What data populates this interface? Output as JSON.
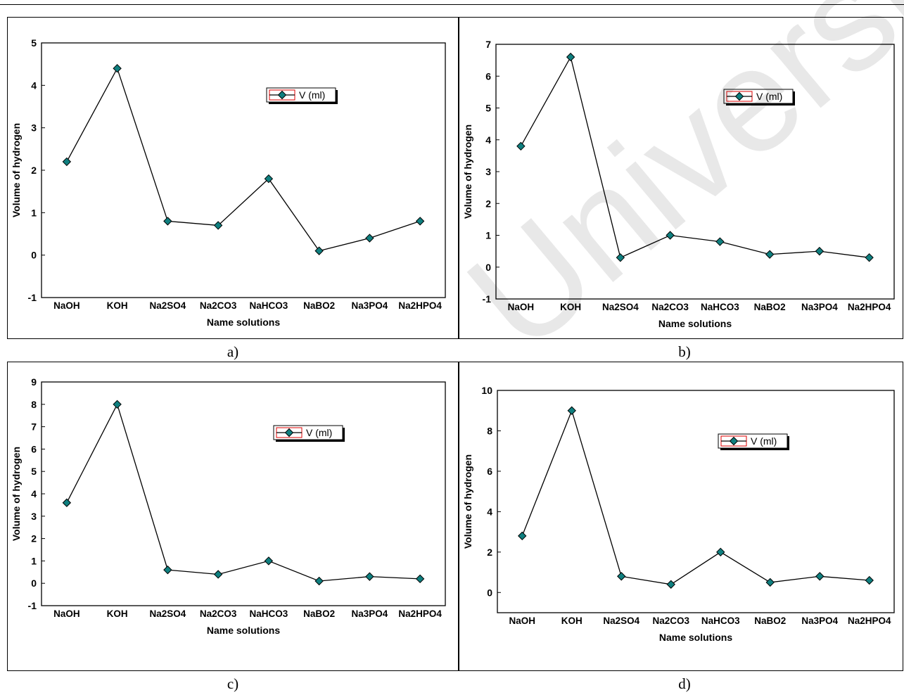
{
  "watermark": "University",
  "chart_data": [
    {
      "type": "line",
      "panel_label": "a)",
      "categories": [
        "NaOH",
        "KOH",
        "Na2SO4",
        "Na2CO3",
        "NaHCO3",
        "NaBO2",
        "Na3PO4",
        "Na2HPO4"
      ],
      "series": [
        {
          "name": "V (ml)",
          "values": [
            2.2,
            4.4,
            0.8,
            0.7,
            1.8,
            0.1,
            0.4,
            0.8
          ]
        }
      ],
      "xlabel": "Name solutions",
      "ylabel": "Volume of hydrogen",
      "ylim": [
        -1,
        5
      ],
      "yticks": [
        -1,
        0,
        1,
        2,
        3,
        4,
        5
      ],
      "grid": false,
      "legend": "top-right",
      "color": "#0f7f7f"
    },
    {
      "type": "line",
      "panel_label": "b)",
      "categories": [
        "NaOH",
        "KOH",
        "Na2SO4",
        "Na2CO3",
        "NaHCO3",
        "NaBO2",
        "Na3PO4",
        "Na2HPO4"
      ],
      "series": [
        {
          "name": "V (ml)",
          "values": [
            3.8,
            6.6,
            0.3,
            1.0,
            0.8,
            0.4,
            0.5,
            0.3
          ]
        }
      ],
      "xlabel": "Name solutions",
      "ylabel": "Volume of hydrogen",
      "ylim": [
        -1,
        7
      ],
      "yticks": [
        -1,
        0,
        1,
        2,
        3,
        4,
        5,
        6,
        7
      ],
      "grid": false,
      "legend": "top-right",
      "color": "#0f7f7f"
    },
    {
      "type": "line",
      "panel_label": "c)",
      "categories": [
        "NaOH",
        "KOH",
        "Na2SO4",
        "Na2CO3",
        "NaHCO3",
        "NaBO2",
        "Na3PO4",
        "Na2HPO4"
      ],
      "series": [
        {
          "name": "V (ml)",
          "values": [
            3.6,
            8.0,
            0.6,
            0.4,
            1.0,
            0.1,
            0.3,
            0.2
          ]
        }
      ],
      "xlabel": "Name solutions",
      "ylabel": "Volume of hydrogen",
      "ylim": [
        -1,
        9
      ],
      "yticks": [
        -1,
        0,
        1,
        2,
        3,
        4,
        5,
        6,
        7,
        8,
        9
      ],
      "grid": false,
      "legend": "top-right",
      "color": "#0f7f7f"
    },
    {
      "type": "line",
      "panel_label": "d)",
      "categories": [
        "NaOH",
        "KOH",
        "Na2SO4",
        "Na2CO3",
        "NaHCO3",
        "NaBO2",
        "Na3PO4",
        "Na2HPO4"
      ],
      "series": [
        {
          "name": "V (ml)",
          "values": [
            2.8,
            9.0,
            0.8,
            0.4,
            2.0,
            0.5,
            0.8,
            0.6
          ]
        }
      ],
      "xlabel": "Name solutions",
      "ylabel": "Volume of hydrogen",
      "ylim": [
        -1,
        10
      ],
      "yticks": [
        0,
        2,
        4,
        6,
        8,
        10
      ],
      "grid": false,
      "legend": "top-right",
      "color": "#0f7f7f"
    }
  ]
}
